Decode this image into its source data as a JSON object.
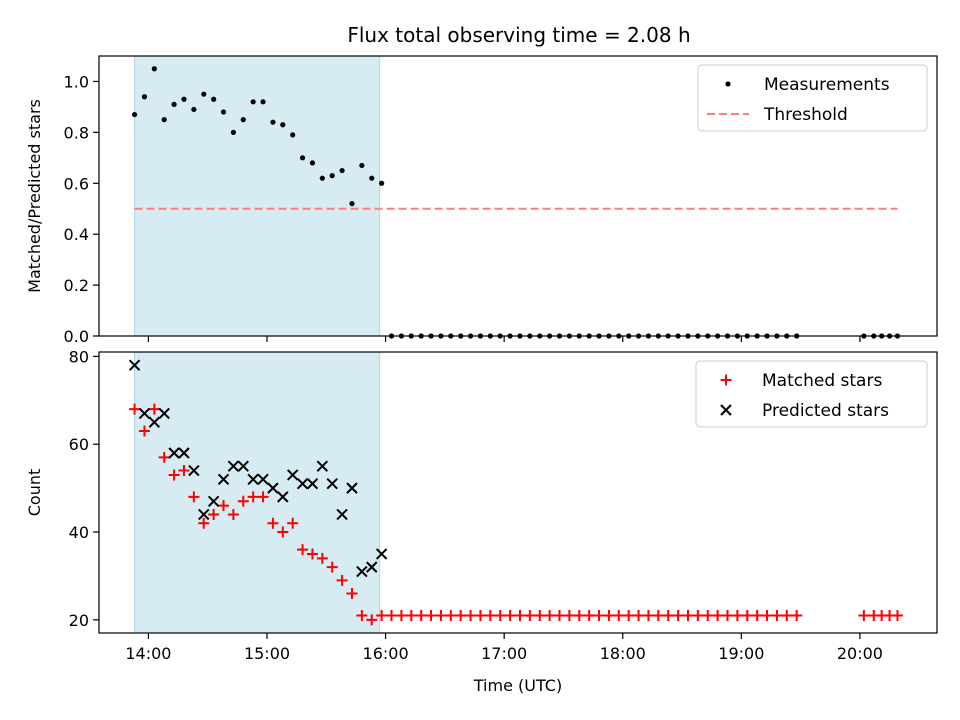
{
  "title": "Flux total observing time = 2.08 h",
  "shaded_region": {
    "x_start": "13:53",
    "x_end": "15:57",
    "color": "#add8e6"
  },
  "chart_data": [
    {
      "type": "scatter",
      "ylabel": "Matched/Predicted stars",
      "ylim": [
        0,
        1.1
      ],
      "yticks": [
        "0.0",
        "0.2",
        "0.4",
        "0.6",
        "0.8",
        "1.0"
      ],
      "ytick_values": [
        0,
        0.2,
        0.4,
        0.6,
        0.8,
        1.0
      ],
      "legend": {
        "placement": "top-right",
        "entries": [
          "Measurements",
          "Threshold"
        ]
      },
      "series": [
        {
          "name": "Measurements",
          "color": "#000000",
          "marker": "dot",
          "points": [
            [
              "13:53",
              0.87
            ],
            [
              "13:58",
              0.94
            ],
            [
              "14:03",
              1.05
            ],
            [
              "14:08",
              0.85
            ],
            [
              "14:13",
              0.91
            ],
            [
              "14:18",
              0.93
            ],
            [
              "14:23",
              0.89
            ],
            [
              "14:28",
              0.95
            ],
            [
              "14:33",
              0.93
            ],
            [
              "14:38",
              0.88
            ],
            [
              "14:43",
              0.8
            ],
            [
              "14:48",
              0.85
            ],
            [
              "14:53",
              0.92
            ],
            [
              "14:58",
              0.92
            ],
            [
              "15:03",
              0.84
            ],
            [
              "15:08",
              0.83
            ],
            [
              "15:13",
              0.79
            ],
            [
              "15:18",
              0.7
            ],
            [
              "15:23",
              0.68
            ],
            [
              "15:28",
              0.62
            ],
            [
              "15:33",
              0.63
            ],
            [
              "15:38",
              0.65
            ],
            [
              "15:43",
              0.52
            ],
            [
              "15:48",
              0.67
            ],
            [
              "15:53",
              0.62
            ],
            [
              "15:58",
              0.6
            ],
            [
              "16:03",
              0
            ],
            [
              "16:08",
              0
            ],
            [
              "16:13",
              0
            ],
            [
              "16:18",
              0
            ],
            [
              "16:23",
              0
            ],
            [
              "16:28",
              0
            ],
            [
              "16:33",
              0
            ],
            [
              "16:38",
              0
            ],
            [
              "16:43",
              0
            ],
            [
              "16:48",
              0
            ],
            [
              "16:53",
              0
            ],
            [
              "16:58",
              0
            ],
            [
              "17:03",
              0
            ],
            [
              "17:08",
              0
            ],
            [
              "17:13",
              0
            ],
            [
              "17:18",
              0
            ],
            [
              "17:23",
              0
            ],
            [
              "17:28",
              0
            ],
            [
              "17:33",
              0
            ],
            [
              "17:38",
              0
            ],
            [
              "17:43",
              0
            ],
            [
              "17:48",
              0
            ],
            [
              "17:53",
              0
            ],
            [
              "17:58",
              0
            ],
            [
              "18:03",
              0
            ],
            [
              "18:08",
              0
            ],
            [
              "18:13",
              0
            ],
            [
              "18:18",
              0
            ],
            [
              "18:23",
              0
            ],
            [
              "18:28",
              0
            ],
            [
              "18:33",
              0
            ],
            [
              "18:38",
              0
            ],
            [
              "18:43",
              0
            ],
            [
              "18:48",
              0
            ],
            [
              "18:53",
              0
            ],
            [
              "18:58",
              0
            ],
            [
              "19:03",
              0
            ],
            [
              "19:08",
              0
            ],
            [
              "19:13",
              0
            ],
            [
              "19:18",
              0
            ],
            [
              "19:23",
              0
            ],
            [
              "19:28",
              0
            ],
            [
              "20:02",
              0
            ],
            [
              "20:07",
              0
            ],
            [
              "20:11",
              0
            ],
            [
              "20:15",
              0
            ],
            [
              "20:19",
              0
            ]
          ]
        },
        {
          "name": "Threshold",
          "color": "#ff7f7f",
          "style": "dashed",
          "points": [
            [
              "13:53",
              0.5
            ],
            [
              "20:19",
              0.5
            ]
          ]
        }
      ]
    },
    {
      "type": "scatter",
      "xlabel": "Time (UTC)",
      "ylabel": "Count",
      "ylim": [
        17,
        81
      ],
      "yticks": [
        "20",
        "40",
        "60",
        "80"
      ],
      "ytick_values": [
        20,
        40,
        60,
        80
      ],
      "xticks": [
        "14:00",
        "15:00",
        "16:00",
        "17:00",
        "18:00",
        "19:00",
        "20:00"
      ],
      "xlim": [
        "13:35",
        "20:39"
      ],
      "legend": {
        "placement": "top-right",
        "entries": [
          "Matched stars",
          "Predicted stars"
        ]
      },
      "series": [
        {
          "name": "Matched stars",
          "color": "#ff0000",
          "marker": "plus",
          "points": [
            [
              "13:53",
              68
            ],
            [
              "13:58",
              63
            ],
            [
              "14:03",
              68
            ],
            [
              "14:08",
              57
            ],
            [
              "14:13",
              53
            ],
            [
              "14:18",
              54
            ],
            [
              "14:23",
              48
            ],
            [
              "14:28",
              42
            ],
            [
              "14:33",
              44
            ],
            [
              "14:38",
              46
            ],
            [
              "14:43",
              44
            ],
            [
              "14:48",
              47
            ],
            [
              "14:53",
              48
            ],
            [
              "14:58",
              48
            ],
            [
              "15:03",
              42
            ],
            [
              "15:08",
              40
            ],
            [
              "15:13",
              42
            ],
            [
              "15:18",
              36
            ],
            [
              "15:23",
              35
            ],
            [
              "15:28",
              34
            ],
            [
              "15:33",
              32
            ],
            [
              "15:38",
              29
            ],
            [
              "15:43",
              26
            ],
            [
              "15:48",
              21
            ],
            [
              "15:53",
              20
            ],
            [
              "15:58",
              21
            ],
            [
              "16:03",
              21
            ],
            [
              "16:08",
              21
            ],
            [
              "16:13",
              21
            ],
            [
              "16:18",
              21
            ],
            [
              "16:23",
              21
            ],
            [
              "16:28",
              21
            ],
            [
              "16:33",
              21
            ],
            [
              "16:38",
              21
            ],
            [
              "16:43",
              21
            ],
            [
              "16:48",
              21
            ],
            [
              "16:53",
              21
            ],
            [
              "16:58",
              21
            ],
            [
              "17:03",
              21
            ],
            [
              "17:08",
              21
            ],
            [
              "17:13",
              21
            ],
            [
              "17:18",
              21
            ],
            [
              "17:23",
              21
            ],
            [
              "17:28",
              21
            ],
            [
              "17:33",
              21
            ],
            [
              "17:38",
              21
            ],
            [
              "17:43",
              21
            ],
            [
              "17:48",
              21
            ],
            [
              "17:53",
              21
            ],
            [
              "17:58",
              21
            ],
            [
              "18:03",
              21
            ],
            [
              "18:08",
              21
            ],
            [
              "18:13",
              21
            ],
            [
              "18:18",
              21
            ],
            [
              "18:23",
              21
            ],
            [
              "18:28",
              21
            ],
            [
              "18:33",
              21
            ],
            [
              "18:38",
              21
            ],
            [
              "18:43",
              21
            ],
            [
              "18:48",
              21
            ],
            [
              "18:53",
              21
            ],
            [
              "18:58",
              21
            ],
            [
              "19:03",
              21
            ],
            [
              "19:08",
              21
            ],
            [
              "19:13",
              21
            ],
            [
              "19:18",
              21
            ],
            [
              "19:23",
              21
            ],
            [
              "19:28",
              21
            ],
            [
              "20:02",
              21
            ],
            [
              "20:07",
              21
            ],
            [
              "20:11",
              21
            ],
            [
              "20:15",
              21
            ],
            [
              "20:19",
              21
            ]
          ]
        },
        {
          "name": "Predicted stars",
          "color": "#000000",
          "marker": "x",
          "points": [
            [
              "13:53",
              78
            ],
            [
              "13:58",
              67
            ],
            [
              "14:03",
              65
            ],
            [
              "14:08",
              67
            ],
            [
              "14:13",
              58
            ],
            [
              "14:18",
              58
            ],
            [
              "14:23",
              54
            ],
            [
              "14:28",
              44
            ],
            [
              "14:33",
              47
            ],
            [
              "14:38",
              52
            ],
            [
              "14:43",
              55
            ],
            [
              "14:48",
              55
            ],
            [
              "14:53",
              52
            ],
            [
              "14:58",
              52
            ],
            [
              "15:03",
              50
            ],
            [
              "15:08",
              48
            ],
            [
              "15:13",
              53
            ],
            [
              "15:18",
              51
            ],
            [
              "15:23",
              51
            ],
            [
              "15:28",
              55
            ],
            [
              "15:33",
              51
            ],
            [
              "15:38",
              44
            ],
            [
              "15:43",
              50
            ],
            [
              "15:48",
              31
            ],
            [
              "15:53",
              32
            ],
            [
              "15:58",
              35
            ]
          ]
        }
      ]
    }
  ]
}
